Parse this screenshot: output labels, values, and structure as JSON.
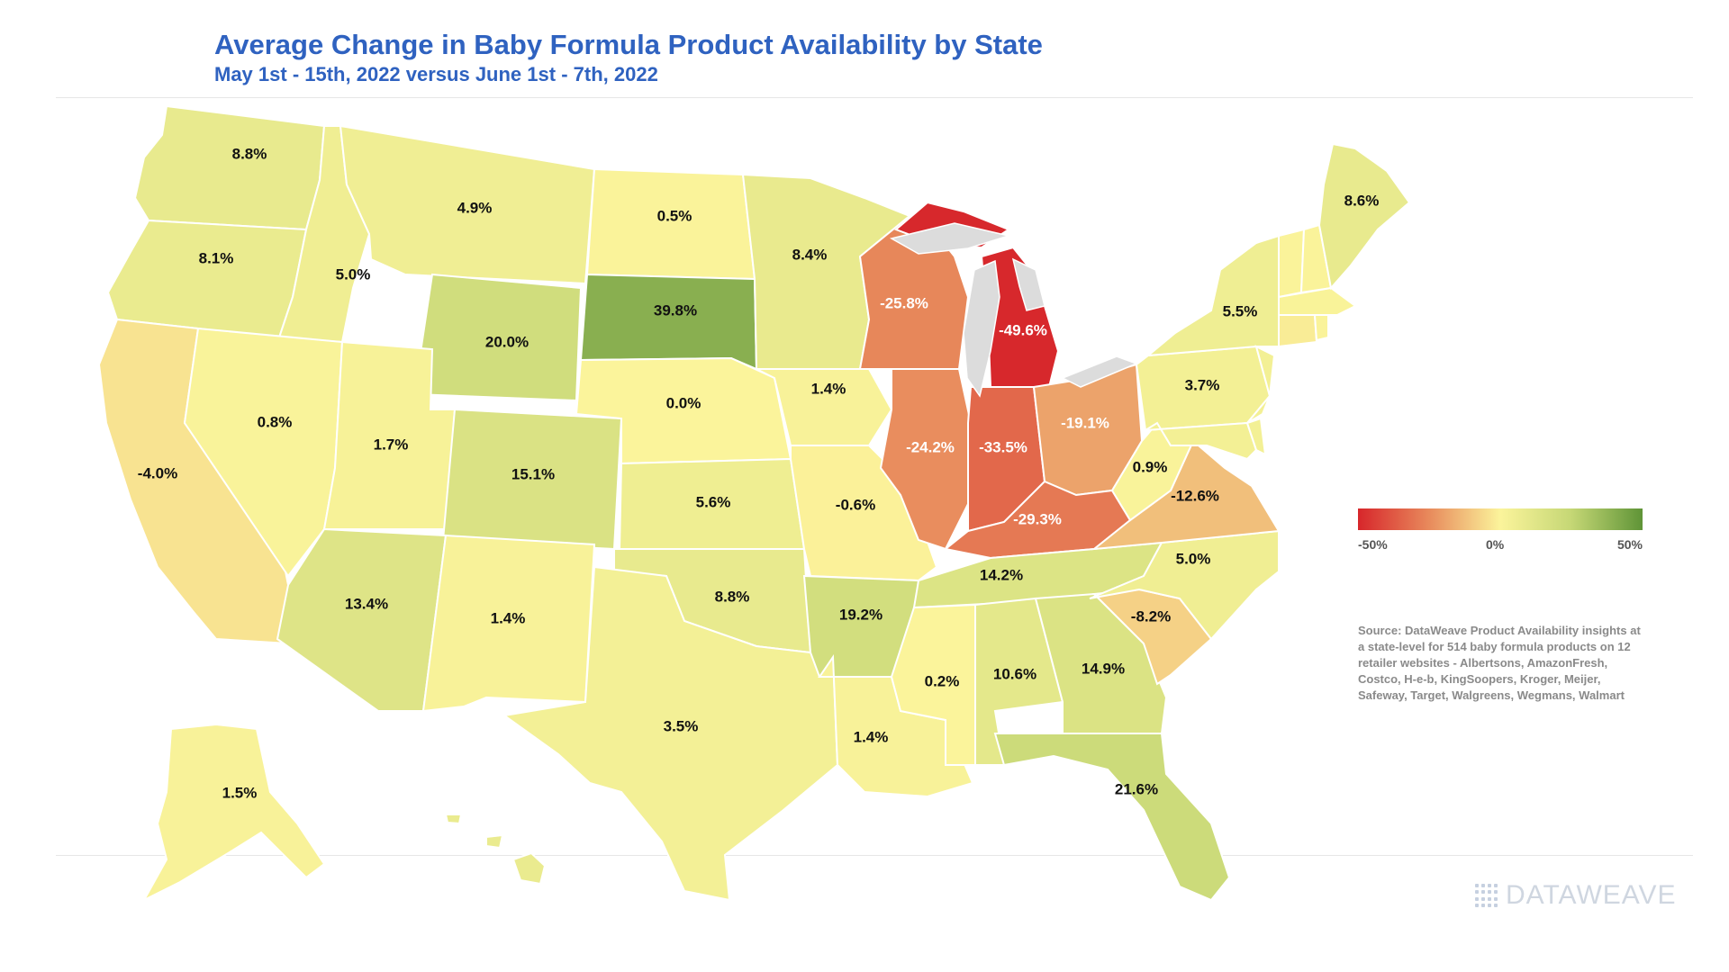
{
  "title": "Average Change in Baby Formula Product Availability by State",
  "subtitle": "May 1st - 15th, 2022 versus June 1st - 7th, 2022",
  "legend": {
    "min_label": "-50%",
    "mid_label": "0%",
    "max_label": "50%",
    "scale": {
      "min": -50,
      "max": 50
    },
    "colors": {
      "low": "#d7262b",
      "lowmid": "#e88a5c",
      "mid": "#fbf49b",
      "highmid": "#c5d775",
      "high": "#5f9437"
    }
  },
  "source": "Source: DataWeave Product Availability insights at a state-level for 514 baby formula products on 12 retailer websites - Albertsons, AmazonFresh, Costco, H-e-b, KingSoopers, Kroger, Meijer, Safeway, Target, Walgreens, Wegmans, Walmart",
  "brand": "DATAWEAVE",
  "map_data": {
    "type": "choropleth",
    "region": "United States",
    "states": [
      {
        "state": "WA",
        "value": 8.8,
        "label": "8.8%"
      },
      {
        "state": "OR",
        "value": 8.1,
        "label": "8.1%"
      },
      {
        "state": "CA",
        "value": -4.0,
        "label": "-4.0%"
      },
      {
        "state": "ID",
        "value": 5.0,
        "label": "5.0%"
      },
      {
        "state": "NV",
        "value": 0.8,
        "label": "0.8%"
      },
      {
        "state": "MT",
        "value": 4.9,
        "label": "4.9%"
      },
      {
        "state": "WY",
        "value": 20.0,
        "label": "20.0%"
      },
      {
        "state": "UT",
        "value": 1.7,
        "label": "1.7%"
      },
      {
        "state": "CO",
        "value": 15.1,
        "label": "15.1%"
      },
      {
        "state": "AZ",
        "value": 13.4,
        "label": "13.4%"
      },
      {
        "state": "NM",
        "value": 1.4,
        "label": "1.4%"
      },
      {
        "state": "ND",
        "value": 0.5,
        "label": "0.5%"
      },
      {
        "state": "SD",
        "value": 39.8,
        "label": "39.8%"
      },
      {
        "state": "NE",
        "value": 0.0,
        "label": "0.0%"
      },
      {
        "state": "KS",
        "value": 5.6,
        "label": "5.6%"
      },
      {
        "state": "OK",
        "value": 8.8,
        "label": "8.8%"
      },
      {
        "state": "TX",
        "value": 3.5,
        "label": "3.5%"
      },
      {
        "state": "MN",
        "value": 8.4,
        "label": "8.4%"
      },
      {
        "state": "IA",
        "value": 1.4,
        "label": "1.4%"
      },
      {
        "state": "MO",
        "value": -0.6,
        "label": "-0.6%"
      },
      {
        "state": "AR",
        "value": 19.2,
        "label": "19.2%"
      },
      {
        "state": "LA",
        "value": 1.4,
        "label": "1.4%"
      },
      {
        "state": "WI",
        "value": -25.8,
        "label": "-25.8%"
      },
      {
        "state": "IL",
        "value": -24.2,
        "label": "-24.2%"
      },
      {
        "state": "MI",
        "value": -49.6,
        "label": "-49.6%"
      },
      {
        "state": "IN",
        "value": -33.5,
        "label": "-33.5%"
      },
      {
        "state": "OH",
        "value": -19.1,
        "label": "-19.1%"
      },
      {
        "state": "KY",
        "value": -29.3,
        "label": "-29.3%"
      },
      {
        "state": "TN",
        "value": 14.2,
        "label": "14.2%"
      },
      {
        "state": "MS",
        "value": 0.2,
        "label": "0.2%"
      },
      {
        "state": "AL",
        "value": 10.6,
        "label": "10.6%"
      },
      {
        "state": "GA",
        "value": 14.9,
        "label": "14.9%"
      },
      {
        "state": "FL",
        "value": 21.6,
        "label": "21.6%"
      },
      {
        "state": "SC",
        "value": -8.2,
        "label": "-8.2%"
      },
      {
        "state": "NC",
        "value": 5.0,
        "label": "5.0%"
      },
      {
        "state": "VA",
        "value": -12.6,
        "label": "-12.6%"
      },
      {
        "state": "WV",
        "value": 0.9,
        "label": "0.9%"
      },
      {
        "state": "PA",
        "value": 3.7,
        "label": "3.7%"
      },
      {
        "state": "NY",
        "value": 5.5,
        "label": "5.5%"
      },
      {
        "state": "ME",
        "value": 8.6,
        "label": "8.6%"
      },
      {
        "state": "AK",
        "value": 1.5,
        "label": "1.5%"
      }
    ]
  }
}
